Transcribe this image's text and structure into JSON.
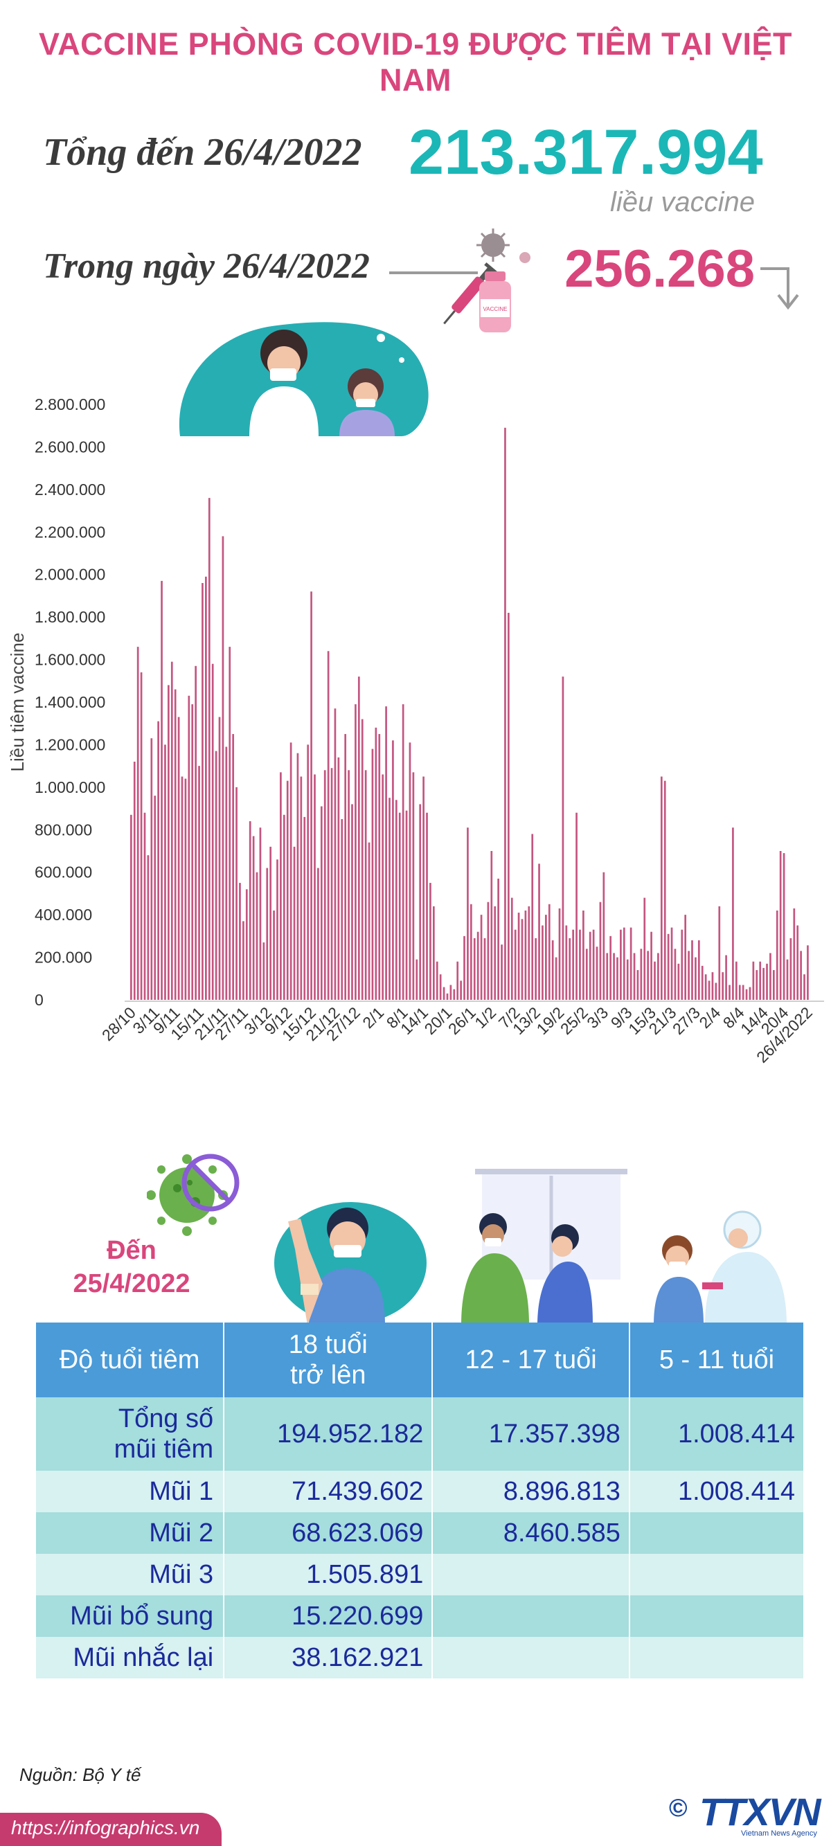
{
  "title": "VACCINE PHÒNG COVID-19 ĐƯỢC TIÊM TẠI VIỆT NAM",
  "summary": {
    "total_label": "Tổng đến 26/4/2022",
    "total_value": "213.317.994",
    "total_unit": "liều vaccine",
    "day_label": "Trong ngày 26/4/2022",
    "day_value": "256.268",
    "vaccine_bottle_text": "VACCINE"
  },
  "chart_data": {
    "type": "bar",
    "ylabel": "Liều tiêm vaccine",
    "ylim": [
      0,
      2800000
    ],
    "y_tick_labels": [
      "0",
      "200.000",
      "400.000",
      "600.000",
      "800.000",
      "1.000.000",
      "1.200.000",
      "1.400.000",
      "1.600.000",
      "1.800.000",
      "2.000.000",
      "2.200.000",
      "2.400.000",
      "2.600.000",
      "2.800.000"
    ],
    "x_tick_labels": [
      "28/10",
      "3/11",
      "9/11",
      "15/11",
      "21/11",
      "27/11",
      "3/12",
      "9/12",
      "15/12",
      "21/12",
      "27/12",
      "2/1",
      "8/1",
      "14/1",
      "20/1",
      "26/1",
      "1/2",
      "7/2",
      "13/2",
      "19/2",
      "25/2",
      "3/3",
      "9/3",
      "15/3",
      "21/3",
      "27/3",
      "2/4",
      "8/4",
      "14/4",
      "20/4",
      "26/4/2022"
    ],
    "values": [
      870000,
      1120000,
      1660000,
      1540000,
      880000,
      680000,
      1230000,
      960000,
      1310000,
      1970000,
      1200000,
      1480000,
      1590000,
      1460000,
      1330000,
      1050000,
      1040000,
      1430000,
      1390000,
      1570000,
      1100000,
      1960000,
      1990000,
      2360000,
      1580000,
      1170000,
      1330000,
      2180000,
      1190000,
      1660000,
      1250000,
      1000000,
      550000,
      370000,
      520000,
      840000,
      770000,
      600000,
      810000,
      270000,
      620000,
      720000,
      420000,
      660000,
      1070000,
      870000,
      1030000,
      1210000,
      720000,
      1160000,
      1050000,
      860000,
      1200000,
      1920000,
      1060000,
      620000,
      910000,
      1080000,
      1640000,
      1090000,
      1370000,
      1140000,
      850000,
      1250000,
      1080000,
      920000,
      1390000,
      1520000,
      1320000,
      1080000,
      740000,
      1180000,
      1280000,
      1250000,
      1060000,
      1380000,
      950000,
      1220000,
      940000,
      880000,
      1390000,
      890000,
      1210000,
      1070000,
      190000,
      920000,
      1050000,
      880000,
      550000,
      440000,
      180000,
      120000,
      60000,
      30000,
      70000,
      50000,
      180000,
      90000,
      300000,
      810000,
      450000,
      290000,
      320000,
      400000,
      290000,
      460000,
      700000,
      440000,
      570000,
      260000,
      2690000,
      1820000,
      480000,
      330000,
      410000,
      380000,
      420000,
      440000,
      780000,
      290000,
      640000,
      350000,
      400000,
      450000,
      280000,
      200000,
      430000,
      1520000,
      350000,
      290000,
      330000,
      880000,
      330000,
      420000,
      240000,
      320000,
      330000,
      250000,
      460000,
      600000,
      220000,
      300000,
      220000,
      200000,
      330000,
      340000,
      190000,
      340000,
      220000,
      140000,
      240000,
      480000,
      230000,
      320000,
      180000,
      220000,
      1050000,
      1030000,
      310000,
      340000,
      240000,
      170000,
      330000,
      400000,
      230000,
      280000,
      200000,
      280000,
      160000,
      120000,
      90000,
      130000,
      80000,
      440000,
      130000,
      210000,
      70000,
      810000,
      180000,
      70000,
      70000,
      50000,
      60000,
      180000,
      140000,
      180000,
      150000,
      170000,
      220000,
      140000,
      420000,
      700000,
      690000,
      190000,
      290000,
      430000,
      350000,
      230000,
      120000,
      256268
    ]
  },
  "age_table": {
    "asof_label": "Đến\n25/4/2022",
    "asof_line1": "Đến",
    "asof_line2": "25/4/2022",
    "header": {
      "col0": "Độ tuổi tiêm",
      "col1_line1": "18 tuổi",
      "col1_line2": "trở lên",
      "col2": "12 - 17 tuổi",
      "col3": "5 - 11 tuổi"
    },
    "rows": [
      {
        "label_line1": "Tổng số",
        "label_line2": "mũi tiêm",
        "v1": "194.952.182",
        "v2": "17.357.398",
        "v3": "1.008.414"
      },
      {
        "label": "Mũi 1",
        "v1": "71.439.602",
        "v2": "8.896.813",
        "v3": "1.008.414"
      },
      {
        "label": "Mũi 2",
        "v1": "68.623.069",
        "v2": "8.460.585",
        "v3": ""
      },
      {
        "label": "Mũi 3",
        "v1": "1.505.891",
        "v2": "",
        "v3": ""
      },
      {
        "label": "Mũi bổ sung",
        "v1": "15.220.699",
        "v2": "",
        "v3": ""
      },
      {
        "label": "Mũi nhắc lại",
        "v1": "38.162.921",
        "v2": "",
        "v3": ""
      }
    ]
  },
  "footer": {
    "source": "Nguồn: Bộ Y tế",
    "url": "https://infographics.vn",
    "logo": "TTXVN",
    "copyright": "©",
    "agency": "Vietnam News Agency"
  },
  "colors": {
    "accent_pink": "#d9467c",
    "accent_teal": "#1bb7b7",
    "bar": "#c4557f",
    "table_header": "#4a9bd8",
    "row_dark": "#a6dddd",
    "row_light": "#d8f1f1",
    "table_text": "#1a2a9a"
  },
  "icons": [
    "syringe-icon",
    "vaccine-bottle-icon",
    "virus-icon",
    "no-virus-icon",
    "arrow-down-icon",
    "doctor-patient-illustration",
    "man-bandage-illustration",
    "teen-vaccination-illustration",
    "child-vaccination-illustration"
  ]
}
